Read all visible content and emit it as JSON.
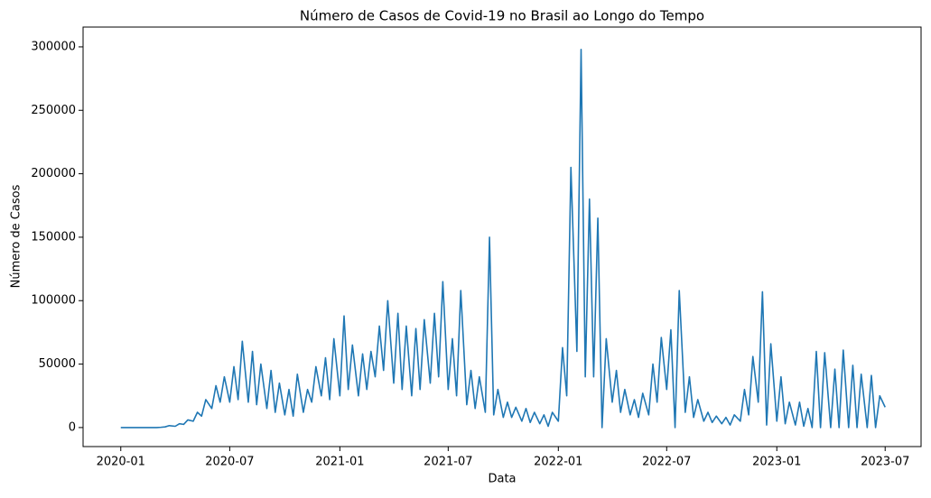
{
  "chart_data": {
    "type": "line",
    "title": "Número de Casos de Covid-19 no Brasil ao Longo do Tempo",
    "x_label": "Data",
    "y_label": "Número de Casos",
    "color": "#1f77b4",
    "x": [
      "2020-01-01",
      "2020-01-08",
      "2020-01-15",
      "2020-01-22",
      "2020-02-01",
      "2020-02-08",
      "2020-02-15",
      "2020-02-22",
      "2020-03-01",
      "2020-03-08",
      "2020-03-15",
      "2020-03-22",
      "2020-04-01",
      "2020-04-08",
      "2020-04-15",
      "2020-04-22",
      "2020-05-01",
      "2020-05-08",
      "2020-05-15",
      "2020-05-22",
      "2020-06-01",
      "2020-06-08",
      "2020-06-15",
      "2020-06-22",
      "2020-07-01",
      "2020-07-08",
      "2020-07-15",
      "2020-07-22",
      "2020-08-01",
      "2020-08-08",
      "2020-08-15",
      "2020-08-22",
      "2020-09-01",
      "2020-09-08",
      "2020-09-15",
      "2020-09-22",
      "2020-10-01",
      "2020-10-08",
      "2020-10-15",
      "2020-10-22",
      "2020-11-01",
      "2020-11-08",
      "2020-11-15",
      "2020-11-22",
      "2020-12-01",
      "2020-12-08",
      "2020-12-15",
      "2020-12-22",
      "2021-01-01",
      "2021-01-08",
      "2021-01-15",
      "2021-01-22",
      "2021-02-01",
      "2021-02-08",
      "2021-02-15",
      "2021-02-22",
      "2021-03-01",
      "2021-03-08",
      "2021-03-15",
      "2021-03-22",
      "2021-04-01",
      "2021-04-08",
      "2021-04-15",
      "2021-04-22",
      "2021-05-01",
      "2021-05-08",
      "2021-05-15",
      "2021-05-22",
      "2021-06-01",
      "2021-06-08",
      "2021-06-15",
      "2021-06-22",
      "2021-07-01",
      "2021-07-08",
      "2021-07-15",
      "2021-07-22",
      "2021-08-01",
      "2021-08-08",
      "2021-08-15",
      "2021-08-22",
      "2021-09-01",
      "2021-09-08",
      "2021-09-15",
      "2021-09-22",
      "2021-10-01",
      "2021-10-08",
      "2021-10-15",
      "2021-10-22",
      "2021-11-01",
      "2021-11-08",
      "2021-11-15",
      "2021-11-22",
      "2021-12-01",
      "2021-12-08",
      "2021-12-15",
      "2021-12-22",
      "2022-01-01",
      "2022-01-08",
      "2022-01-15",
      "2022-01-22",
      "2022-02-01",
      "2022-02-08",
      "2022-02-15",
      "2022-02-22",
      "2022-03-01",
      "2022-03-08",
      "2022-03-15",
      "2022-03-22",
      "2022-04-01",
      "2022-04-08",
      "2022-04-15",
      "2022-04-22",
      "2022-05-01",
      "2022-05-08",
      "2022-05-15",
      "2022-05-22",
      "2022-06-01",
      "2022-06-08",
      "2022-06-15",
      "2022-06-22",
      "2022-07-01",
      "2022-07-08",
      "2022-07-15",
      "2022-07-22",
      "2022-08-01",
      "2022-08-08",
      "2022-08-15",
      "2022-08-22",
      "2022-09-01",
      "2022-09-08",
      "2022-09-15",
      "2022-09-22",
      "2022-10-01",
      "2022-10-08",
      "2022-10-15",
      "2022-10-22",
      "2022-11-01",
      "2022-11-08",
      "2022-11-15",
      "2022-11-22",
      "2022-12-01",
      "2022-12-08",
      "2022-12-15",
      "2022-12-22",
      "2023-01-01",
      "2023-01-08",
      "2023-01-15",
      "2023-01-22",
      "2023-02-01",
      "2023-02-08",
      "2023-02-15",
      "2023-02-22",
      "2023-03-01",
      "2023-03-08",
      "2023-03-15",
      "2023-03-22",
      "2023-04-01",
      "2023-04-08",
      "2023-04-15",
      "2023-04-22",
      "2023-05-01",
      "2023-05-08",
      "2023-05-15",
      "2023-05-22",
      "2023-06-01",
      "2023-06-08",
      "2023-06-15",
      "2023-06-22",
      "2023-07-01"
    ],
    "values": [
      0,
      0,
      0,
      0,
      0,
      0,
      0,
      0,
      0,
      200,
      500,
      1500,
      1000,
      3000,
      2500,
      6000,
      5000,
      12000,
      9000,
      22000,
      15000,
      33000,
      20000,
      40000,
      20000,
      48000,
      22000,
      68000,
      20000,
      60000,
      18000,
      50000,
      15000,
      45000,
      12000,
      35000,
      10000,
      30000,
      9000,
      42000,
      12000,
      30000,
      20000,
      48000,
      25000,
      55000,
      22000,
      70000,
      25000,
      88000,
      30000,
      65000,
      25000,
      58000,
      30000,
      60000,
      40000,
      80000,
      45000,
      100000,
      35000,
      90000,
      30000,
      80000,
      25000,
      78000,
      30000,
      85000,
      35000,
      90000,
      40000,
      115000,
      30000,
      70000,
      25000,
      108000,
      18000,
      45000,
      15000,
      40000,
      12000,
      150000,
      10000,
      30000,
      8000,
      20000,
      8000,
      16000,
      5000,
      15000,
      4000,
      12000,
      3000,
      10000,
      1000,
      12000,
      5000,
      63000,
      25000,
      205000,
      60000,
      298000,
      40000,
      180000,
      40000,
      165000,
      0,
      70000,
      20000,
      45000,
      12000,
      30000,
      10000,
      22000,
      8000,
      27000,
      10000,
      50000,
      20000,
      71000,
      30000,
      77000,
      0,
      108000,
      12000,
      40000,
      8000,
      22000,
      5000,
      12000,
      4000,
      9000,
      3000,
      8000,
      2000,
      10000,
      5000,
      30000,
      10000,
      56000,
      20000,
      107000,
      2000,
      66000,
      5000,
      40000,
      3000,
      20000,
      2000,
      20000,
      1000,
      15000,
      0,
      60000,
      0,
      59000,
      0,
      46000,
      0,
      61000,
      0,
      49000,
      0,
      42000,
      0,
      41000,
      0,
      25000,
      16000
    ],
    "xlim": [
      "2019-10-30",
      "2023-08-30"
    ],
    "xticks": [
      "2020-01",
      "2020-07",
      "2021-01",
      "2021-07",
      "2022-01",
      "2022-07",
      "2023-01",
      "2023-07"
    ],
    "ylim": [
      -15000,
      315600
    ],
    "yticks": [
      0,
      50000,
      100000,
      150000,
      200000,
      250000,
      300000
    ]
  }
}
